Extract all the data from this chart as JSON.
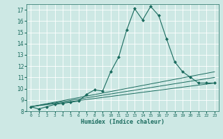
{
  "xlabel": "Humidex (Indice chaleur)",
  "ylabel": "",
  "background_color": "#cde8e4",
  "line_color": "#1a6b5e",
  "xlim": [
    -0.5,
    23.5
  ],
  "ylim": [
    8,
    17.5
  ],
  "yticks": [
    8,
    9,
    10,
    11,
    12,
    13,
    14,
    15,
    16,
    17
  ],
  "xticks": [
    0,
    1,
    2,
    3,
    4,
    5,
    6,
    7,
    8,
    9,
    10,
    11,
    12,
    13,
    14,
    15,
    16,
    17,
    18,
    19,
    20,
    21,
    22,
    23
  ],
  "xtick_labels": [
    "0",
    "1",
    "2",
    "3",
    "4",
    "5",
    "6",
    "7",
    "8",
    "9",
    "10",
    "11",
    "12",
    "13",
    "14",
    "15",
    "16",
    "17",
    "18",
    "19",
    "20",
    "21",
    "22",
    "23"
  ],
  "series": [
    {
      "x": [
        0,
        1,
        2,
        3,
        4,
        5,
        6,
        7,
        8,
        9,
        10,
        11,
        12,
        13,
        14,
        15,
        16,
        17,
        18,
        19,
        20,
        21,
        22,
        23
      ],
      "y": [
        8.4,
        8.2,
        8.4,
        8.6,
        8.7,
        8.8,
        8.9,
        9.5,
        9.9,
        9.8,
        11.5,
        12.8,
        15.2,
        17.1,
        16.1,
        17.3,
        16.5,
        14.4,
        12.4,
        11.5,
        11.0,
        10.5,
        10.5,
        10.5
      ],
      "marker": "D",
      "markersize": 2.0,
      "linewidth": 0.8
    },
    {
      "x": [
        0,
        23
      ],
      "y": [
        8.4,
        10.5
      ],
      "marker": null,
      "linewidth": 0.7
    },
    {
      "x": [
        0,
        23
      ],
      "y": [
        8.4,
        11.0
      ],
      "marker": null,
      "linewidth": 0.7
    },
    {
      "x": [
        0,
        23
      ],
      "y": [
        8.4,
        11.5
      ],
      "marker": null,
      "linewidth": 0.7
    }
  ]
}
